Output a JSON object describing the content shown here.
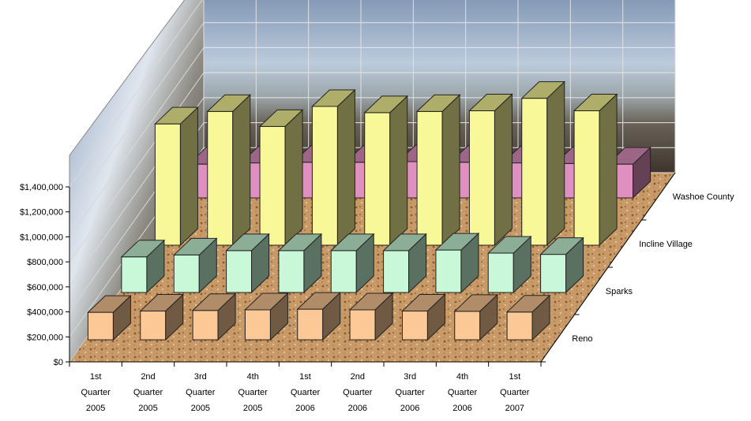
{
  "chart_data": {
    "type": "bar",
    "subtype": "3d-clustered-depth",
    "categories": [
      [
        "1st",
        "Quarter",
        "2005"
      ],
      [
        "2nd",
        "Quarter",
        "2005"
      ],
      [
        "3rd",
        "Quarter",
        "2005"
      ],
      [
        "4th",
        "Quarter",
        "2005"
      ],
      [
        "1st",
        "Quarter",
        "2006"
      ],
      [
        "2nd",
        "Quarter",
        "2006"
      ],
      [
        "3rd",
        "Quarter",
        "2006"
      ],
      [
        "4th",
        "Quarter",
        "2006"
      ],
      [
        "1st",
        "Quarter",
        "2007"
      ]
    ],
    "series": [
      {
        "name": "Reno",
        "color": "#fcc896",
        "values": [
          220000,
          230000,
          235000,
          240000,
          245000,
          240000,
          230000,
          228000,
          222000
        ]
      },
      {
        "name": "Sparks",
        "color": "#c8f8d8",
        "values": [
          285000,
          300000,
          335000,
          335000,
          335000,
          335000,
          340000,
          315000,
          305000
        ]
      },
      {
        "name": "Incline Village",
        "color": "#f8f898",
        "values": [
          970000,
          1070000,
          950000,
          1110000,
          1060000,
          1070000,
          1075000,
          1175000,
          1075000
        ]
      },
      {
        "name": "Washoe County",
        "color": "#e090c0",
        "values": [
          270000,
          280000,
          285000,
          285000,
          290000,
          285000,
          280000,
          275000,
          270000
        ]
      }
    ],
    "yticks": [
      "$0",
      "$200,000",
      "$400,000",
      "$600,000",
      "$800,000",
      "$1,000,000",
      "$1,200,000",
      "$1,400,000"
    ],
    "ylim": [
      0,
      1400000
    ],
    "title": "",
    "xlabel": "",
    "ylabel": "",
    "grid": true,
    "legend": "none"
  }
}
